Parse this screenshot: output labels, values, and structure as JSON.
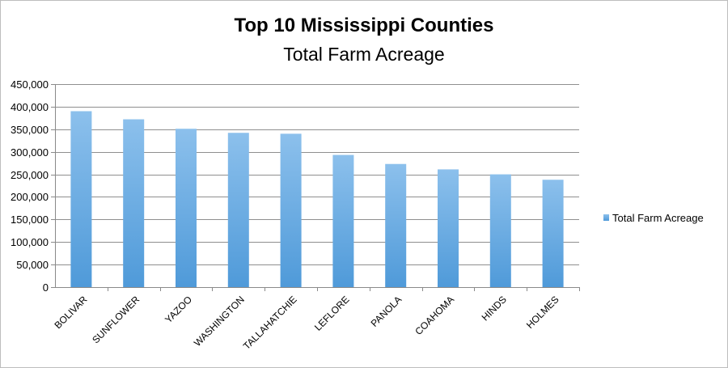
{
  "chart_data": {
    "type": "bar",
    "title": "Top 10 Mississippi Counties",
    "subtitle": "Total Farm Acreage",
    "categories": [
      "BOLIVAR",
      "SUNFLOWER",
      "YAZOO",
      "WASHINGTON",
      "TALLAHATCHIE",
      "LEFLORE",
      "PANOLA",
      "COAHOMA",
      "HINDS",
      "HOLMES"
    ],
    "series": [
      {
        "name": "Total Farm Acreage",
        "values": [
          390000,
          372000,
          351000,
          342000,
          340000,
          293000,
          273000,
          261000,
          250000,
          238000
        ],
        "color": "#6aaee6"
      }
    ],
    "ylim": [
      0,
      450000
    ],
    "yticks": [
      "0",
      "50,000",
      "100,000",
      "150,000",
      "200,000",
      "250,000",
      "300,000",
      "350,000",
      "400,000",
      "450,000"
    ],
    "grid": true,
    "legend_position": "right"
  }
}
